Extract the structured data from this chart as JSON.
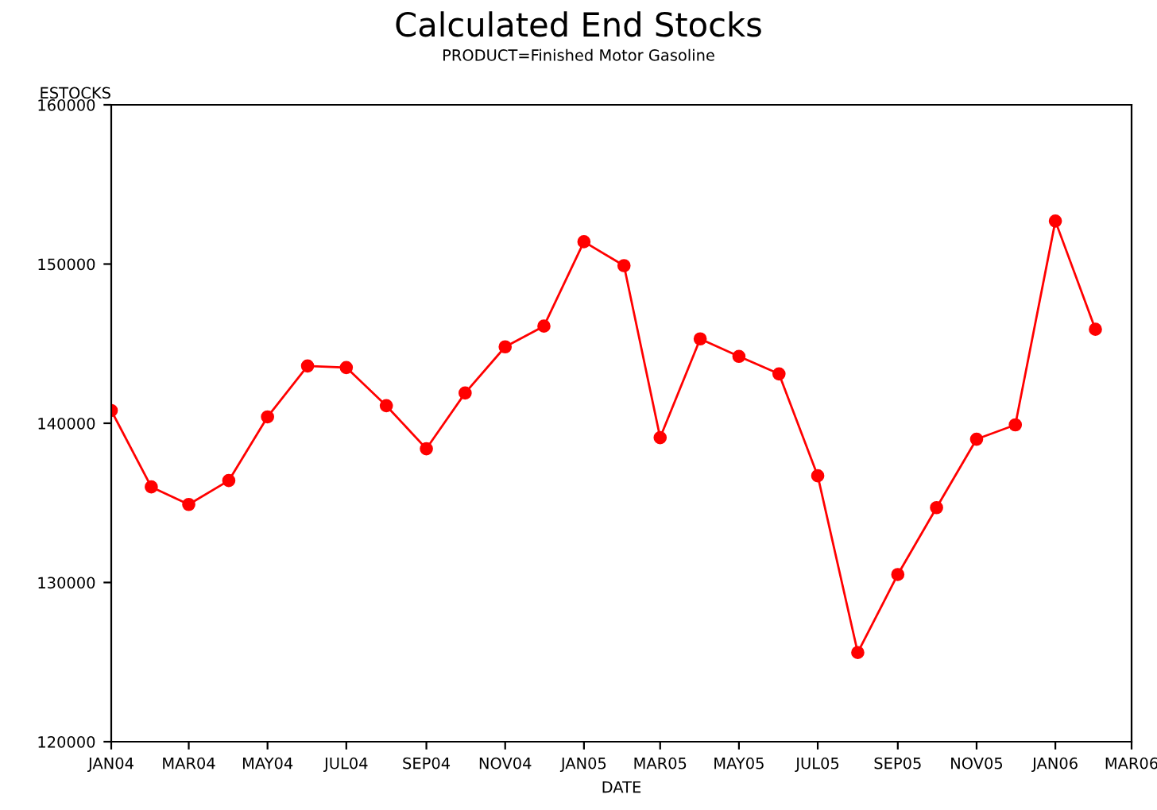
{
  "chart_data": {
    "type": "line",
    "title": "Calculated End Stocks",
    "subtitle": "PRODUCT=Finished Motor Gasoline",
    "xlabel": "DATE",
    "ylabel": "ESTOCKS",
    "x": [
      "2004-01",
      "2004-02",
      "2004-03",
      "2004-04",
      "2004-05",
      "2004-06",
      "2004-07",
      "2004-08",
      "2004-09",
      "2004-10",
      "2004-11",
      "2004-12",
      "2005-01",
      "2005-02",
      "2005-03",
      "2005-04",
      "2005-05",
      "2005-06",
      "2005-07",
      "2005-08",
      "2005-09",
      "2005-10",
      "2005-11",
      "2005-12",
      "2006-01",
      "2006-02"
    ],
    "series": [
      {
        "color": "#ff0000",
        "values": [
          140800,
          136000,
          134900,
          136400,
          140400,
          143600,
          143500,
          141100,
          138400,
          141900,
          144800,
          146100,
          151400,
          149900,
          139100,
          145300,
          144200,
          143100,
          136700,
          125600,
          130500,
          134700,
          139000,
          139900,
          152700,
          145900
        ]
      }
    ],
    "xlim": [
      "2004-01",
      "2006-03"
    ],
    "xticks": [
      {
        "value": "2004-01",
        "label": "JAN04"
      },
      {
        "value": "2004-03",
        "label": "MAR04"
      },
      {
        "value": "2004-05",
        "label": "MAY04"
      },
      {
        "value": "2004-07",
        "label": "JUL04"
      },
      {
        "value": "2004-09",
        "label": "SEP04"
      },
      {
        "value": "2004-11",
        "label": "NOV04"
      },
      {
        "value": "2005-01",
        "label": "JAN05"
      },
      {
        "value": "2005-03",
        "label": "MAR05"
      },
      {
        "value": "2005-05",
        "label": "MAY05"
      },
      {
        "value": "2005-07",
        "label": "JUL05"
      },
      {
        "value": "2005-09",
        "label": "SEP05"
      },
      {
        "value": "2005-11",
        "label": "NOV05"
      },
      {
        "value": "2006-01",
        "label": "JAN06"
      },
      {
        "value": "2006-03",
        "label": "MAR06"
      }
    ],
    "ylim": [
      120000,
      160000
    ],
    "yticks": [
      120000,
      130000,
      140000,
      150000,
      160000
    ],
    "grid": false,
    "legend": false,
    "marker": "circle",
    "line_style": "solid"
  }
}
